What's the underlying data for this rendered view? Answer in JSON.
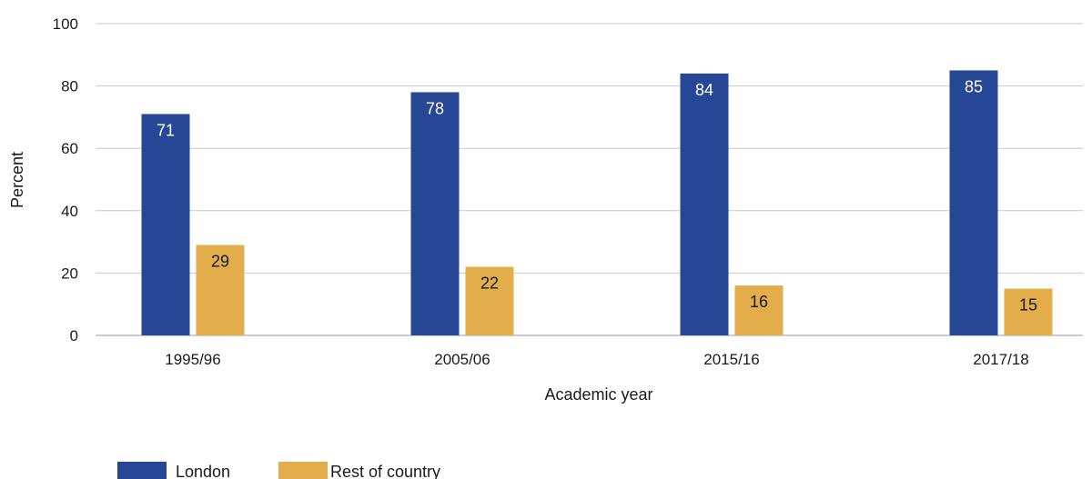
{
  "chart_data": {
    "type": "bar",
    "title": "",
    "xlabel": "Academic year",
    "ylabel": "Percent",
    "ylim": [
      0,
      100
    ],
    "yticks": [
      0,
      20,
      40,
      60,
      80,
      100
    ],
    "categories": [
      "1995/96",
      "2005/06",
      "2015/16",
      "2017/18"
    ],
    "series": [
      {
        "name": "London",
        "values": [
          71,
          78,
          84,
          85
        ],
        "color": "#264796",
        "label_color": "#ffffff"
      },
      {
        "name": "Rest of country",
        "values": [
          29,
          22,
          16,
          15
        ],
        "color": "#e2ad4a",
        "label_color": "#1a1a1a"
      }
    ],
    "grid": true,
    "legend_position": "bottom-left"
  }
}
